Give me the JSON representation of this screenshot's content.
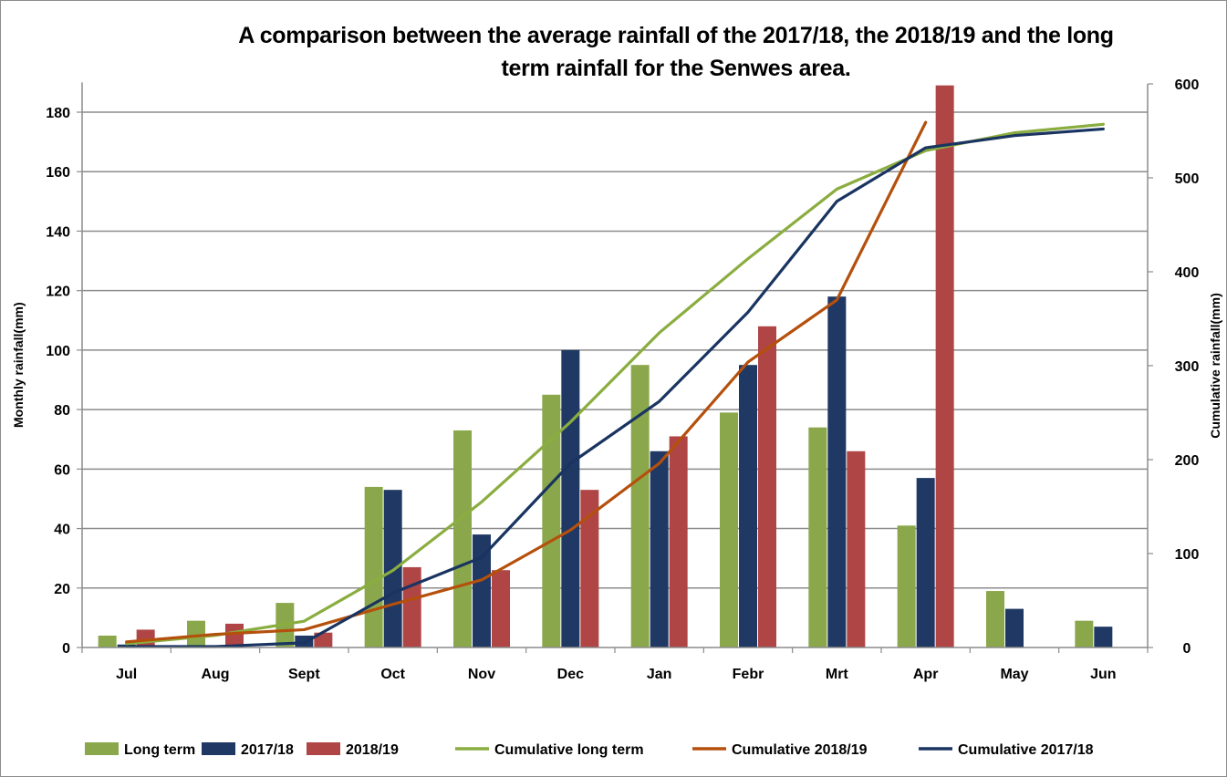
{
  "chart_data": {
    "type": "bar",
    "title": "A comparison between the average rainfall of  the 2017/18, the 2018/19 and the long term rainfall for the Senwes area.",
    "title_lines": [
      "A comparison between the average rainfall of  the 2017/18, the 2018/19 and the long",
      "term rainfall for the Senwes area."
    ],
    "categories": [
      "Jul",
      "Aug",
      "Sept",
      "Oct",
      "Nov",
      "Dec",
      "Jan",
      "Febr",
      "Mrt",
      "Apr",
      "May",
      "Jun"
    ],
    "ylabel": "Monthly rainfall(mm)",
    "y2label": "Cumulative rainfall(mm)",
    "ylim": [
      0,
      190
    ],
    "yticks": [
      0,
      20,
      40,
      60,
      80,
      100,
      120,
      140,
      160,
      180
    ],
    "y2lim": [
      0,
      600
    ],
    "y2ticks": [
      0,
      100,
      200,
      300,
      400,
      500,
      600
    ],
    "grid": true,
    "legend_position": "bottom",
    "bar_series": [
      {
        "name": "Long term",
        "color": "#8aa84b",
        "values": [
          4,
          9,
          15,
          54,
          73,
          85,
          95,
          79,
          74,
          41,
          19,
          9
        ]
      },
      {
        "name": "2017/18",
        "color": "#1f3864",
        "values": [
          1,
          0,
          4,
          53,
          38,
          100,
          66,
          95,
          118,
          57,
          13,
          7
        ]
      },
      {
        "name": "2018/19",
        "color": "#b04545",
        "values": [
          6,
          8,
          5,
          27,
          26,
          53,
          71,
          108,
          66,
          189,
          null,
          null
        ]
      }
    ],
    "line_series": [
      {
        "name": "Cumulative long term",
        "color": "#8aad3f",
        "axis": "right",
        "values": [
          4,
          13,
          28,
          82,
          155,
          240,
          335,
          414,
          488,
          529,
          548,
          557
        ]
      },
      {
        "name": "Cumulative 2018/19",
        "color": "#b5500c",
        "axis": "right",
        "values": [
          6,
          14,
          19,
          46,
          72,
          125,
          196,
          304,
          370,
          559,
          null,
          null
        ]
      },
      {
        "name": "Cumulative 2017/18",
        "color": "#1a3461",
        "axis": "right",
        "values": [
          1,
          1,
          5,
          58,
          96,
          196,
          262,
          357,
          475,
          532,
          545,
          552
        ]
      }
    ],
    "legend": [
      {
        "name": "Long term",
        "kind": "bar",
        "color": "#8aa84b"
      },
      {
        "name": "2017/18",
        "kind": "bar",
        "color": "#1f3864"
      },
      {
        "name": "2018/19",
        "kind": "bar",
        "color": "#b04545"
      },
      {
        "name": "Cumulative long term",
        "kind": "line",
        "color": "#8aad3f"
      },
      {
        "name": "Cumulative 2018/19",
        "kind": "line",
        "color": "#b5500c"
      },
      {
        "name": "Cumulative 2017/18",
        "kind": "line",
        "color": "#1a3461"
      }
    ]
  }
}
